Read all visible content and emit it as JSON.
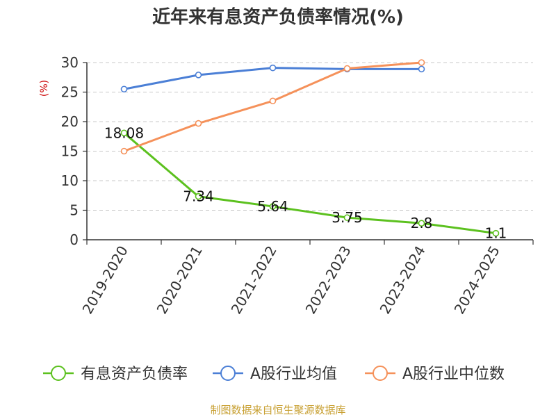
{
  "chart_data": {
    "type": "line",
    "title": "近年来有息资产负债率情况(%)",
    "ylabel": "(%)",
    "ylim": [
      0,
      30
    ],
    "yticks": [
      0,
      5,
      10,
      15,
      20,
      25,
      30
    ],
    "grid": true,
    "legend_position": "bottom",
    "categories": [
      "2019-2020",
      "2020-2021",
      "2021-2022",
      "2022-2023",
      "2023-2024",
      "2024-2025"
    ],
    "series": [
      {
        "name": "有息资产负债率",
        "color": "#5cc11f",
        "values": [
          18.08,
          7.34,
          5.64,
          3.75,
          2.8,
          1.1
        ],
        "labels": [
          "18.08",
          "7.34",
          "5.64",
          "3.75",
          "2.8",
          "1.1"
        ]
      },
      {
        "name": "A股行业均值",
        "color": "#4b7fd6",
        "values": [
          25.5,
          27.9,
          29.1,
          28.9,
          28.9,
          null
        ]
      },
      {
        "name": "A股行业中位数",
        "color": "#f5915a",
        "values": [
          15.0,
          19.7,
          23.5,
          29.0,
          30.0,
          null
        ]
      }
    ]
  },
  "source": "制图数据来自恒生聚源数据库"
}
